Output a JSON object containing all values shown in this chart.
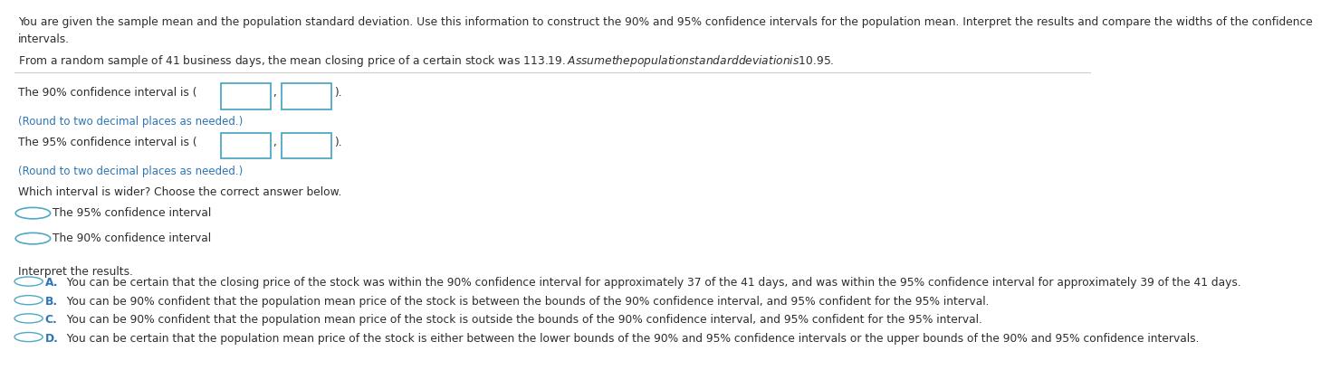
{
  "bg_color": "#ffffff",
  "text_color": "#2d2d2d",
  "blue_color": "#2e75b6",
  "dark_blue": "#1f4e79",
  "header_line1": "You are given the sample mean and the population standard deviation. Use this information to construct the 90% and 95% confidence intervals for the population mean. Interpret the results and compare the widths of the confidence",
  "header_line2": "intervals.",
  "subheader": "From a random sample of 41 business days, the mean closing price of a certain stock was $113.19. Assume the population standard deviation is $10.95.",
  "ci90_prefix": "The 90% confidence interval is (",
  "ci95_prefix": "The 95% confidence interval is (",
  "ci_suffix1": " ,",
  "ci_suffix2": ").",
  "round_note": "(Round to two decimal places as needed.)",
  "wider_prompt": "Which interval is wider? Choose the correct answer below.",
  "option_95": "The 95% confidence interval",
  "option_90": "The 90% confidence interval",
  "interpret_label": "Interpret the results.",
  "optionA_label": "A.",
  "optionA_text": "  You can be certain that the closing price of the stock was within the 90% confidence interval for approximately 37 of the 41 days, and was within the 95% confidence interval for approximately 39 of the 41 days.",
  "optionB_label": "B.",
  "optionB_text": "  You can be 90% confident that the population mean price of the stock is between the bounds of the 90% confidence interval, and 95% confident for the 95% interval.",
  "optionC_label": "C.",
  "optionC_text": "  You can be 90% confident that the population mean price of the stock is outside the bounds of the 90% confidence interval, and 95% confident for the 95% interval.",
  "optionD_label": "D.",
  "optionD_text": "  You can be certain that the population mean price of the stock is either between the lower bounds of the 90% and 95% confidence intervals or the upper bounds of the 90% and 95% confidence intervals.",
  "box_edge_color": "#4fa8c5",
  "radio_color": "#4fa8c5",
  "sep_color": "#cccccc"
}
